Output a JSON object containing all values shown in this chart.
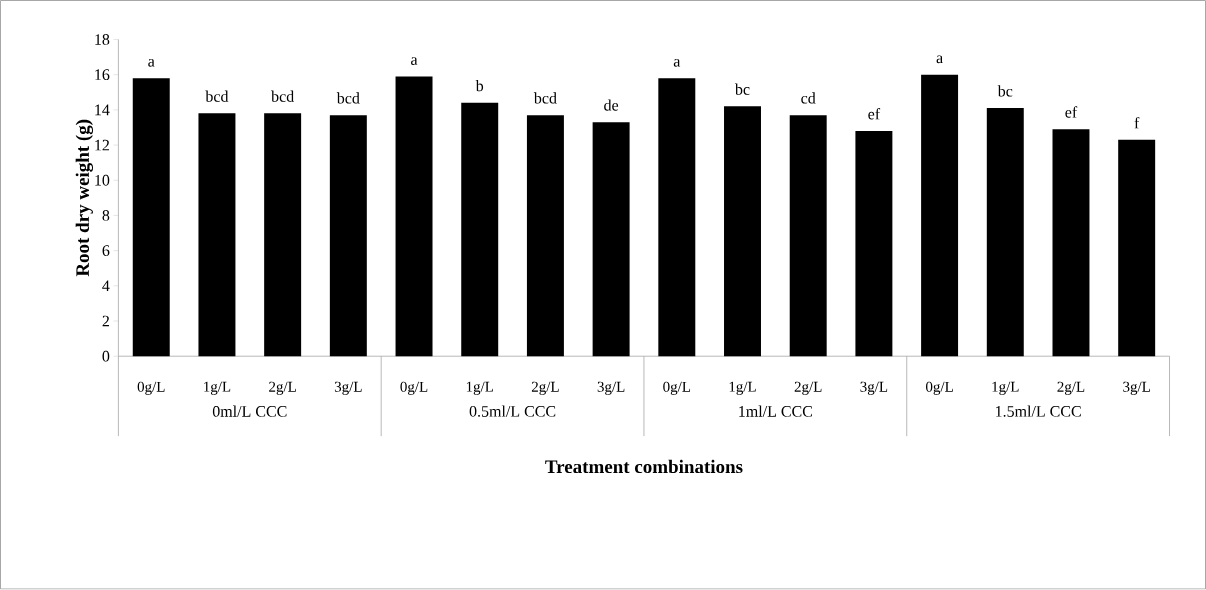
{
  "chart_data": {
    "type": "bar",
    "xlabel": "Treatment combinations",
    "ylabel": "Root dry weight (g)",
    "categories": [
      "0g/L",
      "1g/L",
      "2g/L",
      "3g/L",
      "0g/L",
      "1g/L",
      "2g/L",
      "3g/L",
      "0g/L",
      "1g/L",
      "2g/L",
      "3g/L",
      "0g/L",
      "1g/L",
      "2g/L",
      "3g/L"
    ],
    "values": [
      15.8,
      13.8,
      13.8,
      13.7,
      15.9,
      14.4,
      13.7,
      13.3,
      15.8,
      14.2,
      13.7,
      12.8,
      16.0,
      14.1,
      12.9,
      12.3
    ],
    "value_labels": [
      "a",
      "bcd",
      "bcd",
      "bcd",
      "a",
      "b",
      "bcd",
      "de",
      "a",
      "bc",
      "cd",
      "ef",
      "a",
      "bc",
      "ef",
      "f"
    ],
    "color": "#000000",
    "ylim": [
      0,
      18
    ],
    "yticks": [
      0,
      2,
      4,
      6,
      8,
      10,
      12,
      14,
      16,
      18
    ],
    "grid": false,
    "annotations": [
      "0ml/L CCC",
      "0.5ml/L CCC",
      "1ml/L CCC",
      "1.5ml/L CCC"
    ]
  }
}
